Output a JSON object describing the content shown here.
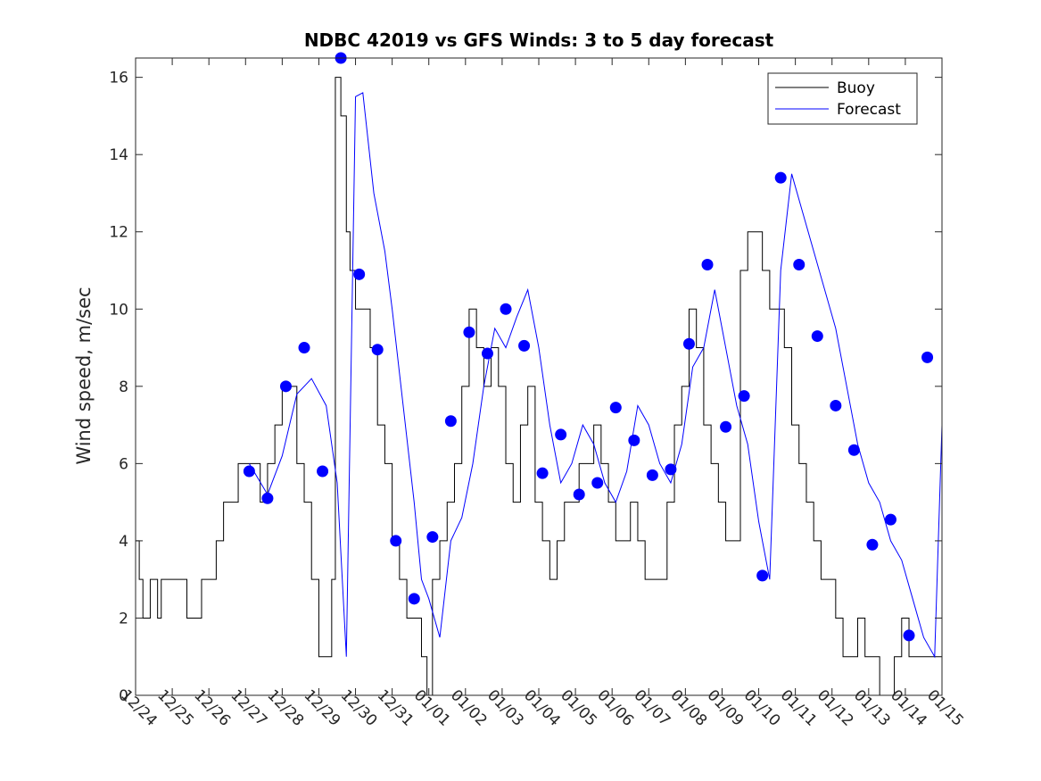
{
  "chart_data": {
    "type": "line",
    "title": "NDBC 42019 vs GFS Winds: 3 to 5 day forecast",
    "xlabel": "",
    "ylabel": "Wind speed, m/sec",
    "xlim": [
      0,
      22
    ],
    "ylim": [
      0,
      16.5
    ],
    "x_ticks": [
      0,
      1,
      2,
      3,
      4,
      5,
      6,
      7,
      8,
      9,
      10,
      11,
      12,
      13,
      14,
      15,
      16,
      17,
      18,
      19,
      20,
      21,
      22
    ],
    "x_tick_labels": [
      "12/24",
      "12/25",
      "12/26",
      "12/27",
      "12/28",
      "12/29",
      "12/30",
      "12/31",
      "01/01",
      "01/02",
      "01/03",
      "01/04",
      "01/05",
      "01/06",
      "01/07",
      "01/08",
      "01/09",
      "01/10",
      "01/11",
      "01/12",
      "01/13",
      "01/14",
      "01/15"
    ],
    "y_ticks": [
      0,
      2,
      4,
      6,
      8,
      10,
      12,
      14,
      16
    ],
    "y_tick_labels": [
      "0",
      "2",
      "4",
      "6",
      "8",
      "10",
      "12",
      "14",
      "16"
    ],
    "legend": {
      "location": "top-right",
      "entries": [
        {
          "label": "Buoy",
          "color": "#000000"
        },
        {
          "label": "Forecast",
          "color": "#0000ff"
        }
      ]
    },
    "series": [
      {
        "name": "Buoy",
        "color": "#000000",
        "style": "step",
        "x": [
          0,
          0.1,
          0.2,
          0.3,
          0.4,
          0.6,
          0.7,
          0.8,
          1.0,
          1.2,
          1.4,
          1.6,
          1.8,
          2.0,
          2.2,
          2.4,
          2.6,
          2.8,
          3.0,
          3.2,
          3.4,
          3.6,
          3.8,
          4.0,
          4.2,
          4.4,
          4.6,
          4.8,
          5.0,
          5.2,
          5.35,
          5.45,
          5.6,
          5.75,
          5.85,
          6.0,
          6.2,
          6.4,
          6.6,
          6.8,
          7.0,
          7.2,
          7.4,
          7.6,
          7.8,
          7.95,
          8.1,
          8.3,
          8.5,
          8.7,
          8.9,
          9.1,
          9.3,
          9.5,
          9.7,
          9.9,
          10.1,
          10.3,
          10.5,
          10.7,
          10.9,
          11.1,
          11.3,
          11.5,
          11.7,
          11.9,
          12.1,
          12.3,
          12.5,
          12.7,
          12.9,
          13.1,
          13.3,
          13.5,
          13.7,
          13.9,
          14.1,
          14.3,
          14.5,
          14.7,
          14.9,
          15.1,
          15.3,
          15.5,
          15.7,
          15.9,
          16.1,
          16.3,
          16.5,
          16.7,
          16.9,
          17.1,
          17.3,
          17.5,
          17.7,
          17.9,
          18.1,
          18.3,
          18.5,
          18.7,
          18.9,
          19.1,
          19.3,
          19.5,
          19.7,
          19.9,
          20.1,
          20.3,
          20.5,
          20.7,
          20.9,
          21.1,
          21.3,
          21.5,
          21.7,
          21.9,
          22.0
        ],
        "values": [
          4,
          3,
          2,
          2,
          3,
          2,
          3,
          3,
          3,
          3,
          2,
          2,
          3,
          3,
          4,
          5,
          5,
          6,
          6,
          6,
          5,
          6,
          7,
          8,
          8,
          6,
          5,
          3,
          1,
          1,
          3,
          16,
          15,
          12,
          11,
          10,
          10,
          9,
          7,
          6,
          4,
          3,
          2,
          2,
          1,
          0,
          3,
          4,
          5,
          6,
          8,
          10,
          9,
          8,
          9,
          8,
          6,
          5,
          7,
          8,
          5,
          4,
          3,
          4,
          5,
          5,
          6,
          6,
          7,
          6,
          5,
          4,
          4,
          5,
          4,
          3,
          3,
          3,
          5,
          7,
          8,
          10,
          9,
          7,
          6,
          5,
          4,
          4,
          11,
          12,
          12,
          11,
          10,
          10,
          9,
          7,
          6,
          5,
          4,
          3,
          3,
          2,
          1,
          1,
          2,
          1,
          1,
          0,
          0,
          1,
          2,
          1,
          1,
          1,
          1,
          1,
          1
        ]
      },
      {
        "name": "Forecast",
        "color": "#0000ff",
        "style": "line",
        "x": [
          3.1,
          3.6,
          4.0,
          4.4,
          4.8,
          5.2,
          5.5,
          5.75,
          6.0,
          6.2,
          6.5,
          6.8,
          7.0,
          7.3,
          7.6,
          7.8,
          8.0,
          8.3,
          8.6,
          8.9,
          9.2,
          9.5,
          9.8,
          10.1,
          10.4,
          10.7,
          11.0,
          11.3,
          11.6,
          11.9,
          12.2,
          12.5,
          12.8,
          13.1,
          13.4,
          13.7,
          14.0,
          14.3,
          14.6,
          14.9,
          15.2,
          15.5,
          15.8,
          16.1,
          16.4,
          16.7,
          17.0,
          17.3,
          17.6,
          17.9,
          18.2,
          18.5,
          18.8,
          19.1,
          19.4,
          19.7,
          20.0,
          20.3,
          20.6,
          20.9,
          21.2,
          21.5,
          21.8,
          22.0
        ],
        "values": [
          6.0,
          5.2,
          6.2,
          7.8,
          8.2,
          7.5,
          5.5,
          1.0,
          15.5,
          15.6,
          13.0,
          11.5,
          10.0,
          7.5,
          5.0,
          3.0,
          2.5,
          1.5,
          4.0,
          4.6,
          6.0,
          8.0,
          9.5,
          9.0,
          9.8,
          10.5,
          9.0,
          7.0,
          5.5,
          6.0,
          7.0,
          6.5,
          5.5,
          5.0,
          5.8,
          7.5,
          7.0,
          6.0,
          5.5,
          6.5,
          8.5,
          9.0,
          10.5,
          9.0,
          7.5,
          6.5,
          4.5,
          3.0,
          11.0,
          13.5,
          12.5,
          11.5,
          10.5,
          9.5,
          8.0,
          6.5,
          5.5,
          5.0,
          4.0,
          3.5,
          2.5,
          1.5,
          1.0,
          7.0
        ]
      },
      {
        "name": "Forecast points",
        "color": "#0000ff",
        "style": "scatter",
        "x": [
          3.1,
          3.6,
          4.1,
          4.6,
          5.1,
          5.6,
          6.1,
          6.6,
          7.1,
          7.6,
          8.1,
          8.6,
          9.1,
          9.6,
          10.1,
          10.6,
          11.1,
          11.6,
          12.1,
          12.6,
          13.1,
          13.6,
          14.1,
          14.6,
          15.1,
          15.6,
          16.1,
          16.6,
          17.1,
          17.6,
          18.1,
          18.6,
          19.1,
          19.6,
          20.1,
          20.6,
          21.1,
          21.6
        ],
        "values": [
          5.8,
          5.1,
          8.0,
          9.0,
          5.8,
          16.5,
          10.9,
          8.95,
          4.0,
          2.5,
          4.1,
          7.1,
          9.4,
          8.85,
          10.0,
          9.05,
          5.75,
          6.75,
          5.2,
          5.5,
          7.45,
          6.6,
          5.7,
          5.85,
          9.1,
          11.15,
          6.95,
          7.75,
          3.1,
          13.4,
          11.15,
          9.3,
          7.5,
          6.35,
          3.9,
          4.55,
          1.55,
          8.75
        ]
      }
    ]
  }
}
